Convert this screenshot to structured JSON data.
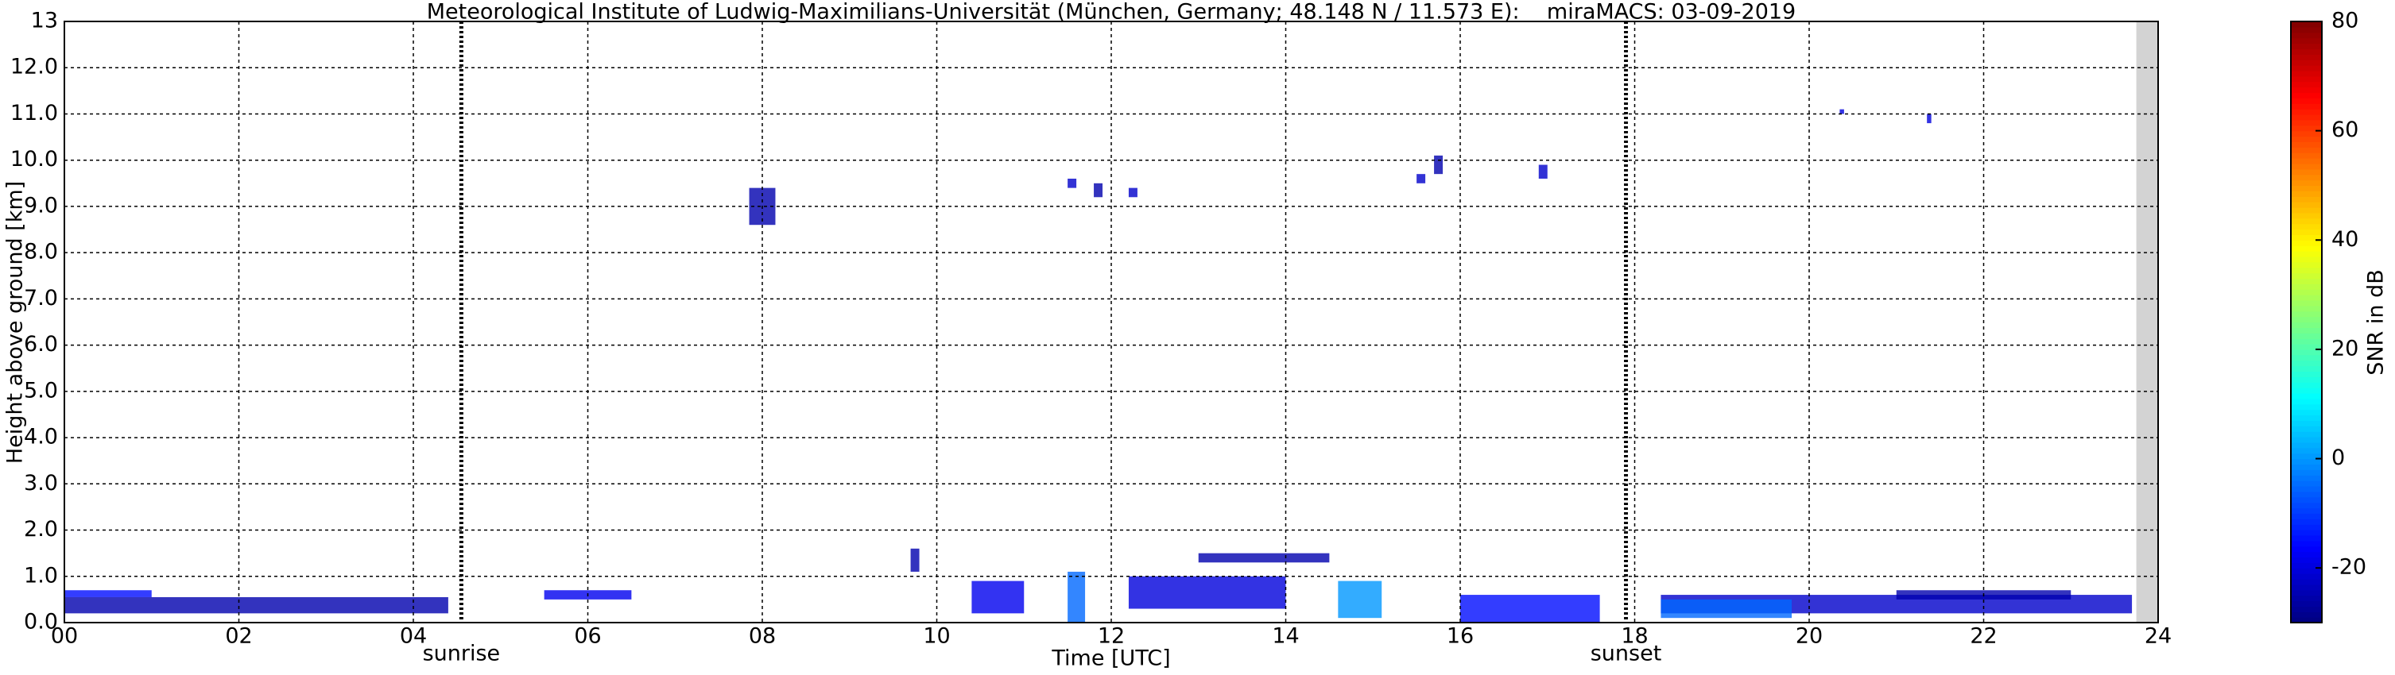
{
  "chart_data": {
    "type": "heatmap",
    "title": "Meteorological Institute of Ludwig-Maximilians-Universität (München, Germany; 48.148 N / 11.573 E):    miraMACS: 03-09-2019",
    "x_label": "Time [UTC]",
    "y_label": "Height above ground [km]",
    "xlim": [
      0,
      24
    ],
    "xticks": [
      {
        "value": 0,
        "label": "00"
      },
      {
        "value": 2,
        "label": "02"
      },
      {
        "value": 4,
        "label": "04"
      },
      {
        "value": 6,
        "label": "06"
      },
      {
        "value": 8,
        "label": "08"
      },
      10,
      12,
      14,
      16,
      18,
      20,
      22,
      24
    ],
    "ylim": [
      0,
      13
    ],
    "yticks": [
      {
        "value": 0,
        "label": "0.0"
      },
      {
        "value": 1,
        "label": "1.0"
      },
      {
        "value": 2,
        "label": "2.0"
      },
      {
        "value": 3,
        "label": "3.0"
      },
      {
        "value": 4,
        "label": "4.0"
      },
      {
        "value": 5,
        "label": "5.0"
      },
      {
        "value": 6,
        "label": "6.0"
      },
      {
        "value": 7,
        "label": "7.0"
      },
      {
        "value": 8,
        "label": "8.0"
      },
      {
        "value": 9,
        "label": "9.0"
      },
      {
        "value": 10,
        "label": "10.0"
      },
      {
        "value": 11,
        "label": "11.0"
      },
      {
        "value": 12,
        "label": "12.0"
      },
      13
    ],
    "grid": true,
    "missing": [
      23.75,
      24
    ],
    "annotations": [
      {
        "x": 4.55,
        "label": "sunrise"
      },
      {
        "x": 17.9,
        "label": "sunset"
      }
    ],
    "colorbar": {
      "label": "SNR in dB",
      "cmap": "jet",
      "lim": [
        -30,
        80
      ],
      "ticks": [
        -20,
        0,
        20,
        40,
        60,
        80
      ]
    },
    "echoes": [
      {
        "t": [
          0.0,
          4.4
        ],
        "h": [
          0.2,
          0.55
        ],
        "snr": -25
      },
      {
        "t": [
          0.0,
          1.0
        ],
        "h": [
          0.55,
          0.7
        ],
        "snr": -15
      },
      {
        "t": [
          5.5,
          6.5
        ],
        "h": [
          0.5,
          0.7
        ],
        "snr": -18
      },
      {
        "t": [
          7.85,
          8.15
        ],
        "h": [
          8.6,
          9.4
        ],
        "snr": -25
      },
      {
        "t": [
          11.5,
          11.6
        ],
        "h": [
          9.4,
          9.6
        ],
        "snr": -22
      },
      {
        "t": [
          11.8,
          11.9
        ],
        "h": [
          9.2,
          9.5
        ],
        "snr": -25
      },
      {
        "t": [
          12.2,
          12.3
        ],
        "h": [
          9.2,
          9.4
        ],
        "snr": -22
      },
      {
        "t": [
          15.5,
          15.6
        ],
        "h": [
          9.5,
          9.7
        ],
        "snr": -22
      },
      {
        "t": [
          15.7,
          15.8
        ],
        "h": [
          9.7,
          10.1
        ],
        "snr": -25
      },
      {
        "t": [
          16.9,
          17.0
        ],
        "h": [
          9.6,
          9.9
        ],
        "snr": -22
      },
      {
        "t": [
          20.35,
          20.4
        ],
        "h": [
          11.0,
          11.1
        ],
        "snr": -20
      },
      {
        "t": [
          21.35,
          21.4
        ],
        "h": [
          10.8,
          11.0
        ],
        "snr": -20
      },
      {
        "t": [
          9.7,
          9.8
        ],
        "h": [
          1.1,
          1.6
        ],
        "snr": -25
      },
      {
        "t": [
          10.4,
          11.0
        ],
        "h": [
          0.2,
          0.9
        ],
        "snr": -18
      },
      {
        "t": [
          11.5,
          11.7
        ],
        "h": [
          0.0,
          1.1
        ],
        "snr": -5
      },
      {
        "t": [
          12.2,
          14.0
        ],
        "h": [
          0.3,
          1.0
        ],
        "snr": -20
      },
      {
        "t": [
          13.0,
          14.5
        ],
        "h": [
          1.3,
          1.5
        ],
        "snr": -25
      },
      {
        "t": [
          14.6,
          15.1
        ],
        "h": [
          0.1,
          0.9
        ],
        "snr": 0
      },
      {
        "t": [
          16.0,
          17.6
        ],
        "h": [
          0.0,
          0.6
        ],
        "snr": -15
      },
      {
        "t": [
          18.3,
          23.7
        ],
        "h": [
          0.2,
          0.6
        ],
        "snr": -22
      },
      {
        "t": [
          18.3,
          19.8
        ],
        "h": [
          0.1,
          0.5
        ],
        "snr": -5
      },
      {
        "t": [
          21.0,
          23.0
        ],
        "h": [
          0.5,
          0.7
        ],
        "snr": -25
      }
    ]
  }
}
